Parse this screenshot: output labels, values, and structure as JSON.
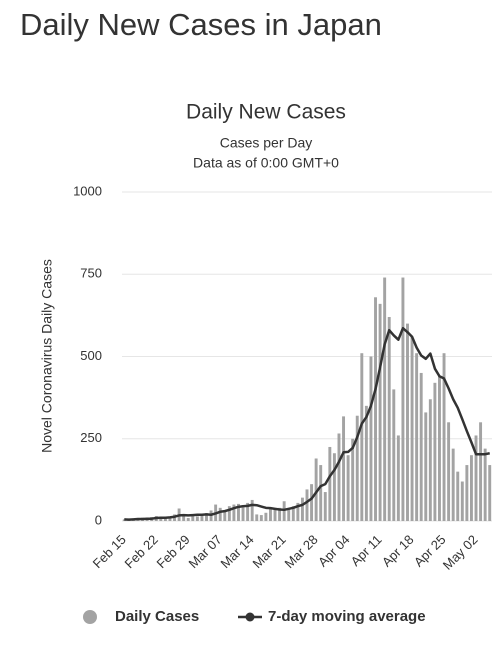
{
  "page_title": "Daily New Cases in Japan",
  "chart_data": {
    "type": "bar",
    "title": "Daily New Cases",
    "subtitle": "Cases per Day",
    "note": "Data as of 0:00 GMT+0",
    "y_label": "Novel Coronavirus Daily Cases",
    "categories": [
      "Feb 15",
      null,
      null,
      null,
      null,
      null,
      null,
      "Feb 22",
      null,
      null,
      null,
      null,
      null,
      null,
      "Feb 29",
      null,
      null,
      null,
      null,
      null,
      null,
      "Mar 07",
      null,
      null,
      null,
      null,
      null,
      null,
      "Mar 14",
      null,
      null,
      null,
      null,
      null,
      null,
      "Mar 21",
      null,
      null,
      null,
      null,
      null,
      null,
      "Mar 28",
      null,
      null,
      null,
      null,
      null,
      null,
      "Apr 04",
      null,
      null,
      null,
      null,
      null,
      null,
      "Apr 11",
      null,
      null,
      null,
      null,
      null,
      null,
      "Apr 18",
      null,
      null,
      null,
      null,
      null,
      null,
      "Apr 25",
      null,
      null,
      null,
      null,
      null,
      null,
      "May 02",
      null,
      null,
      null
    ],
    "series": [
      {
        "name": "Daily Cases",
        "type": "bar",
        "color": "#a3a3a3",
        "values": [
          5,
          3,
          6,
          8,
          10,
          8,
          12,
          15,
          12,
          8,
          14,
          20,
          38,
          20,
          9,
          15,
          14,
          18,
          24,
          32,
          50,
          40,
          30,
          45,
          50,
          52,
          48,
          55,
          64,
          20,
          18,
          25,
          40,
          35,
          40,
          60,
          38,
          45,
          55,
          71,
          96,
          112,
          190,
          170,
          88,
          225,
          206,
          266,
          318,
          200,
          250,
          320,
          510,
          350,
          500,
          680,
          660,
          740,
          620,
          400,
          260,
          740,
          600,
          560,
          510,
          450,
          330,
          370,
          420,
          440,
          510,
          300,
          220,
          150,
          120,
          170,
          200,
          260,
          300,
          220,
          170
        ]
      },
      {
        "name": "7-day moving average",
        "type": "line",
        "color": "#333333",
        "values": [
          5,
          4,
          5,
          6,
          6,
          7,
          7,
          9,
          10,
          10,
          11,
          13,
          17,
          18,
          17,
          18,
          19,
          19,
          20,
          19,
          23,
          28,
          30,
          34,
          39,
          43,
          45,
          46,
          49,
          48,
          44,
          40,
          39,
          37,
          35,
          34,
          37,
          40,
          45,
          49,
          58,
          68,
          87,
          106,
          112,
          136,
          155,
          180,
          209,
          210,
          222,
          255,
          296,
          316,
          350,
          401,
          467,
          537,
          580,
          564,
          551,
          586,
          574,
          560,
          527,
          503,
          493,
          509,
          463,
          440,
          433,
          403,
          370,
          344,
          309,
          273,
          239,
          203,
          203,
          203,
          206
        ]
      }
    ],
    "ylim": [
      0,
      1000
    ],
    "yticks": [
      0,
      250,
      500,
      750,
      1000
    ],
    "grid": true,
    "legend": "bottom"
  }
}
